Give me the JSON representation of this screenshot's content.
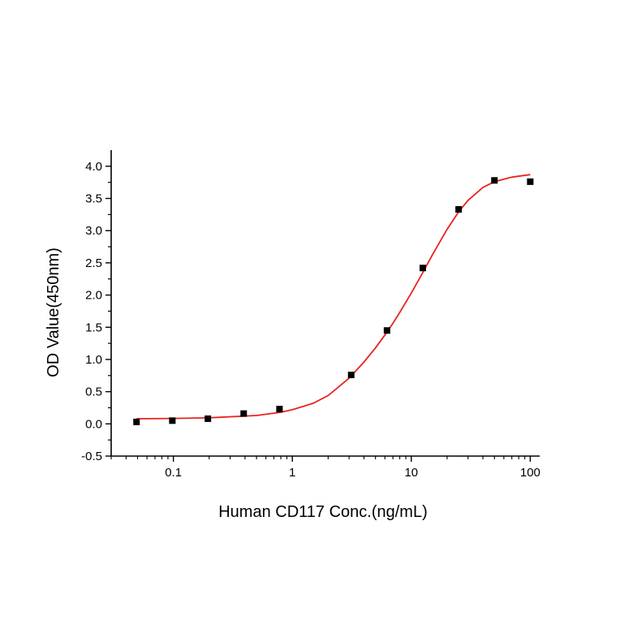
{
  "chart_data": {
    "type": "scatter",
    "title": "",
    "xlabel": "Human CD117 Conc.(ng/mL)",
    "ylabel": "OD Value(450nm)",
    "x_scale": "log",
    "xlim": [
      0.03,
      120
    ],
    "ylim": [
      -0.5,
      4.25
    ],
    "x_ticks": [
      0.1,
      1,
      10,
      100
    ],
    "x_tick_labels": [
      "0.1",
      "1",
      "10",
      "100"
    ],
    "y_ticks": [
      -0.5,
      0.0,
      0.5,
      1.0,
      1.5,
      2.0,
      2.5,
      3.0,
      3.5,
      4.0
    ],
    "y_tick_labels": [
      "-0.5",
      "0.0",
      "0.5",
      "1.0",
      "1.5",
      "2.0",
      "2.5",
      "3.0",
      "3.5",
      "4.0"
    ],
    "grid": false,
    "legend": "none",
    "series": [
      {
        "kind": "points",
        "marker": "square",
        "color": "#000000",
        "x": [
          0.049,
          0.098,
          0.195,
          0.39,
          0.78,
          3.125,
          6.25,
          12.5,
          25,
          50,
          100
        ],
        "y": [
          0.03,
          0.05,
          0.08,
          0.16,
          0.23,
          0.76,
          1.45,
          2.42,
          3.33,
          3.78,
          3.76
        ]
      },
      {
        "kind": "fit_curve",
        "color": "#e8231f",
        "x": [
          0.049,
          0.1,
          0.2,
          0.5,
          0.8,
          1.0,
          1.5,
          2.0,
          3.0,
          4.0,
          5.0,
          6.0,
          7.0,
          8.0,
          10.0,
          12.0,
          15.0,
          20.0,
          25.0,
          30.0,
          40.0,
          50.0,
          70.0,
          100.0
        ],
        "y": [
          0.08,
          0.085,
          0.095,
          0.13,
          0.18,
          0.22,
          0.32,
          0.44,
          0.71,
          0.96,
          1.18,
          1.38,
          1.56,
          1.73,
          2.03,
          2.29,
          2.62,
          3.02,
          3.29,
          3.47,
          3.67,
          3.76,
          3.83,
          3.87
        ]
      }
    ]
  }
}
